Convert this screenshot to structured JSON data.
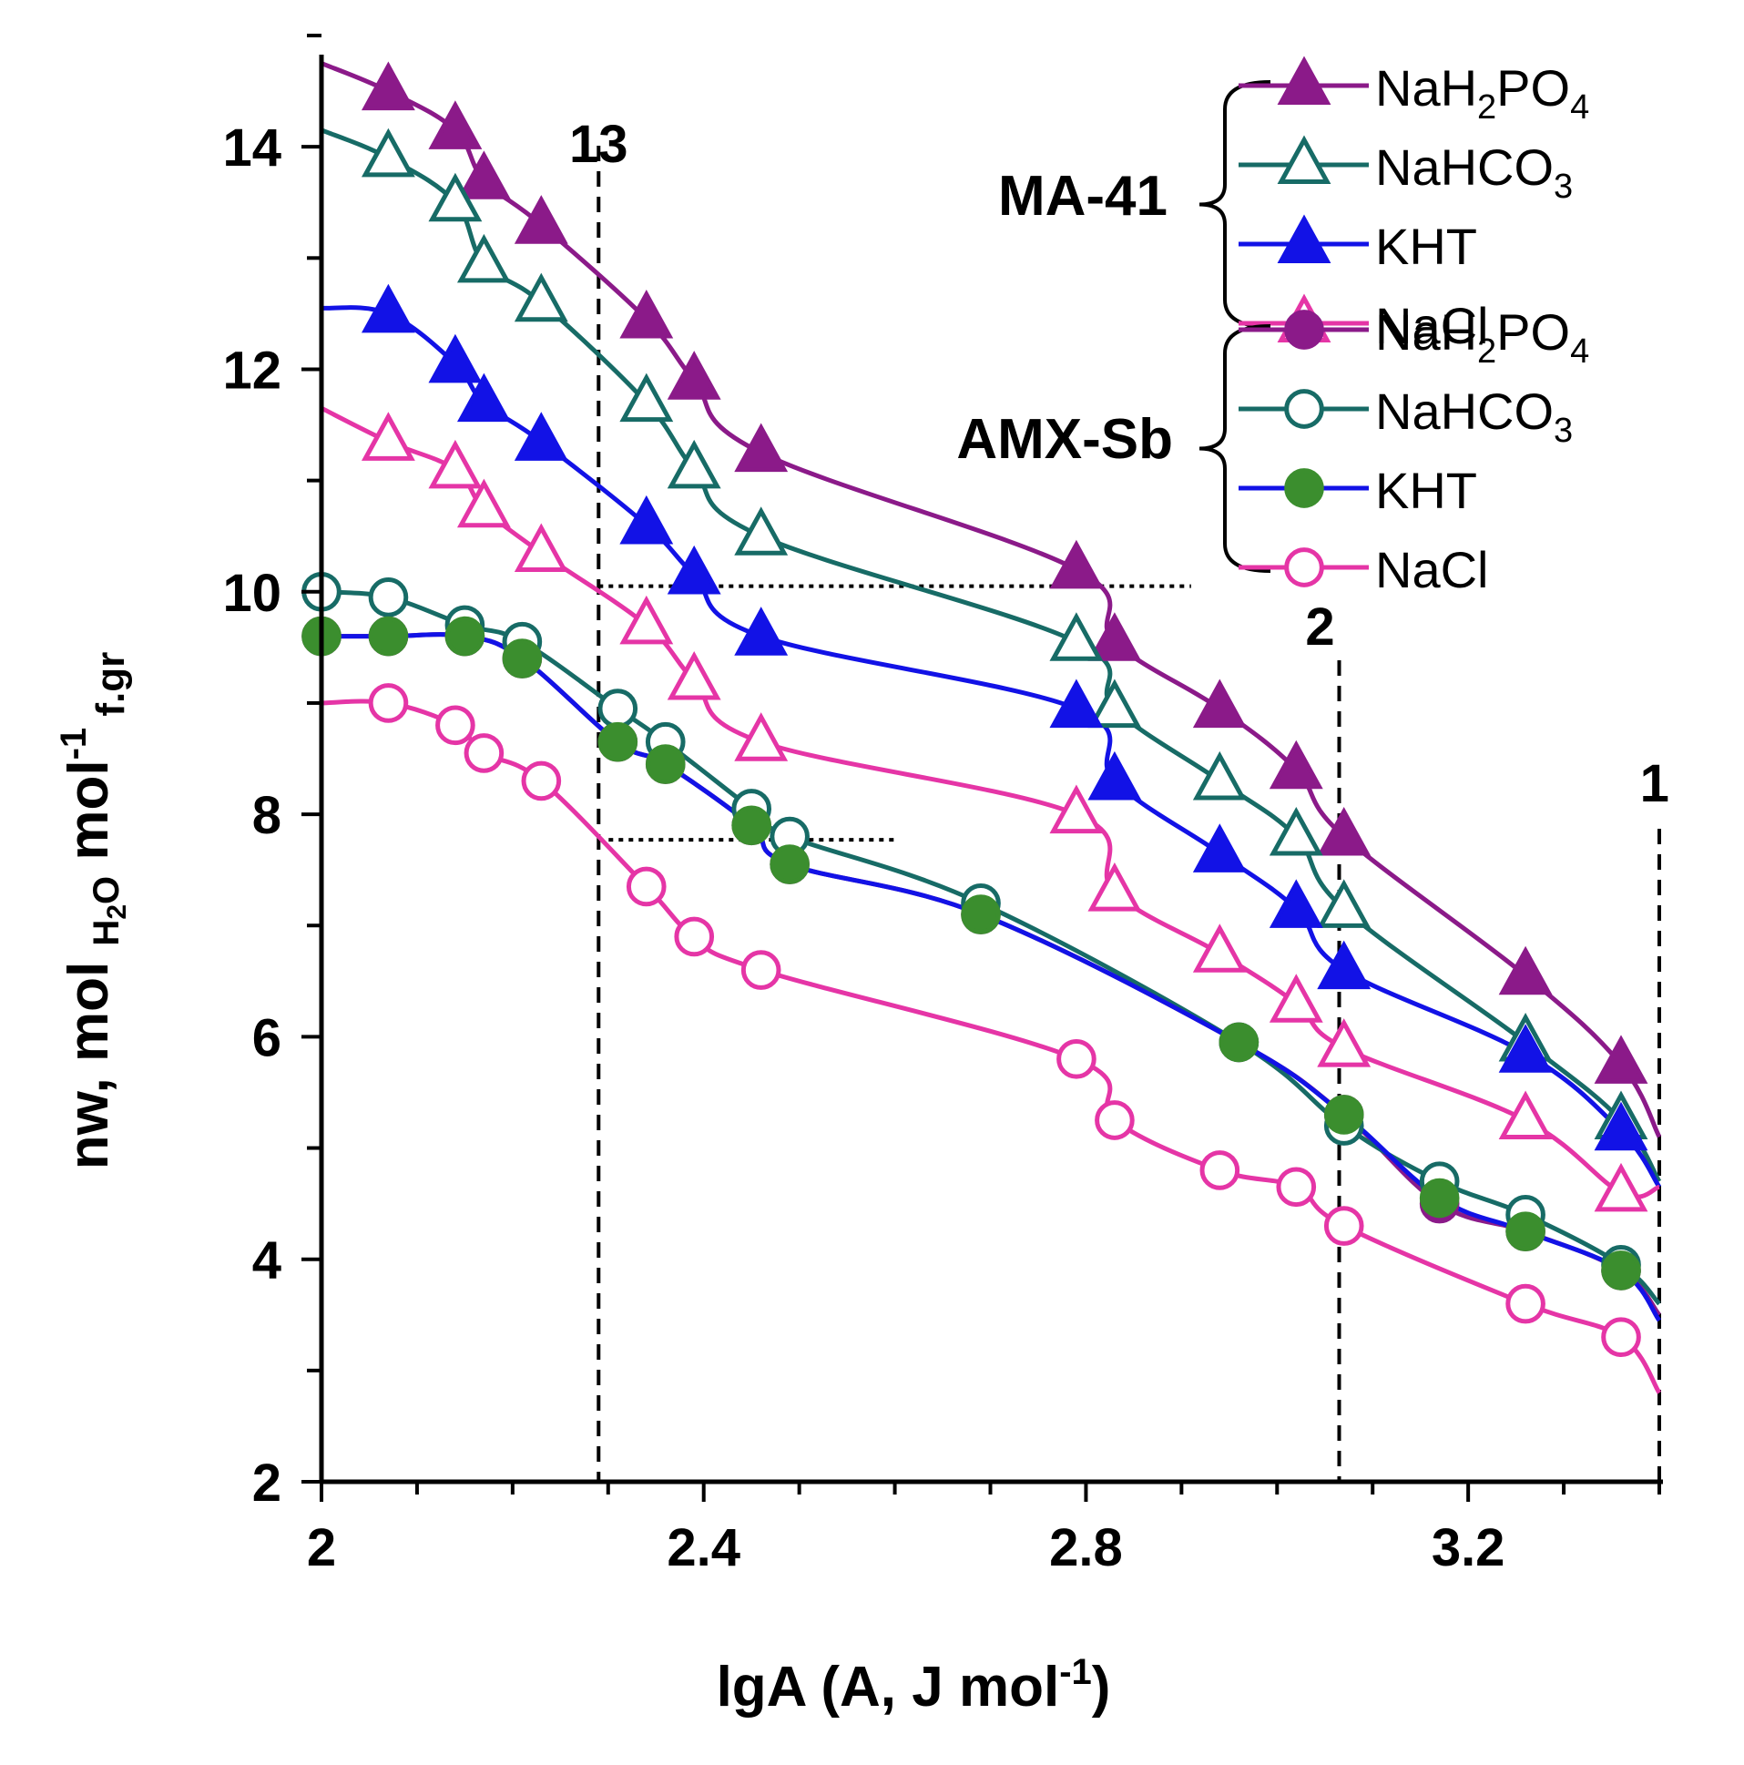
{
  "chart_data": {
    "type": "line",
    "title": "",
    "xlabel": {
      "main": "lgA (A, J mol",
      "sup": "-1",
      "close": ")"
    },
    "ylabel": {
      "p1": "nw, mol ",
      "sub1": "H",
      "sub2": "2",
      "sub3": "O",
      "p2": " mol",
      "sup": "-1",
      "sub4": " f.gr"
    },
    "xlim": [
      2.0,
      3.4
    ],
    "ylim": [
      2,
      15
    ],
    "x_ticks": [
      {
        "value": 2.0,
        "label": "2"
      },
      {
        "value": 2.4,
        "label": "2.4"
      },
      {
        "value": 2.8,
        "label": "2.8"
      },
      {
        "value": 3.2,
        "label": "3.2"
      }
    ],
    "y_ticks": [
      {
        "value": 2,
        "label": "2"
      },
      {
        "value": 4,
        "label": "4"
      },
      {
        "value": 6,
        "label": "6"
      },
      {
        "value": 8,
        "label": "8"
      },
      {
        "value": 10,
        "label": "10"
      },
      {
        "value": 12,
        "label": "12"
      },
      {
        "value": 14,
        "label": "14"
      }
    ],
    "vertical_lines": [
      {
        "x": 2.29,
        "label": "13"
      },
      {
        "x": 3.065,
        "label": "2"
      },
      {
        "x": 3.4,
        "label": "1"
      }
    ],
    "horizontal_lines": [
      {
        "y": 10.05,
        "x_from": 2.29,
        "x_to": 2.91
      },
      {
        "y": 7.77,
        "x_from": 2.29,
        "x_to": 2.6
      }
    ],
    "legend_groups": [
      {
        "label": "MA-41",
        "entries": [
          0,
          1,
          2,
          3
        ]
      },
      {
        "label": "AMX-Sb",
        "entries": [
          4,
          5,
          6,
          7
        ]
      }
    ],
    "series": [
      {
        "name": "NaH2PO4",
        "name_parts": [
          "NaH",
          "2",
          "PO",
          "4"
        ],
        "group": "MA-41",
        "color": "#8b1a89",
        "marker": "triangle",
        "fill": "#8b1a89",
        "stroke": "#8b1a89",
        "x": [
          2.07,
          2.14,
          2.17,
          2.23,
          2.34,
          2.39,
          2.46,
          2.79,
          2.83,
          2.94,
          3.02,
          3.07,
          3.26,
          3.36
        ],
        "y": [
          14.5,
          14.15,
          13.7,
          13.3,
          12.45,
          11.9,
          11.25,
          10.2,
          9.55,
          8.95,
          8.4,
          7.8,
          6.55,
          5.75
        ],
        "line_start": [
          2.0,
          14.75
        ],
        "line_end": [
          3.4,
          5.1
        ]
      },
      {
        "name": "NaHCO3",
        "name_parts": [
          "NaHCO",
          "3",
          "",
          ""
        ],
        "group": "MA-41",
        "color": "#176b66",
        "marker": "triangle",
        "fill": "#ffffff",
        "stroke": "#176b66",
        "x": [
          2.07,
          2.14,
          2.17,
          2.23,
          2.34,
          2.39,
          2.46,
          2.79,
          2.83,
          2.94,
          3.02,
          3.07,
          3.26,
          3.36
        ],
        "y": [
          13.9,
          13.5,
          12.95,
          12.6,
          11.7,
          11.1,
          10.5,
          9.55,
          8.95,
          8.3,
          7.8,
          7.15,
          5.95,
          5.25
        ],
        "line_start": [
          2.0,
          14.15
        ],
        "line_end": [
          3.4,
          4.7
        ]
      },
      {
        "name": "KHT",
        "name_parts": [
          "KHT",
          "",
          "",
          ""
        ],
        "group": "MA-41",
        "color": "#1212e6",
        "marker": "triangle",
        "fill": "#1212e6",
        "stroke": "#1212e6",
        "x": [
          2.07,
          2.14,
          2.17,
          2.23,
          2.34,
          2.39,
          2.46,
          2.79,
          2.83,
          2.94,
          3.02,
          3.07,
          3.26,
          3.36
        ],
        "y": [
          12.5,
          12.05,
          11.7,
          11.35,
          10.6,
          10.15,
          9.6,
          8.95,
          8.3,
          7.65,
          7.15,
          6.6,
          5.85,
          5.15
        ],
        "line_start": [
          2.0,
          12.55
        ],
        "line_end": [
          3.4,
          4.65
        ]
      },
      {
        "name": "NaCl",
        "name_parts": [
          "NaCl",
          "",
          "",
          ""
        ],
        "group": "MA-41",
        "color": "#e535a6",
        "marker": "triangle",
        "fill": "#ffffff",
        "stroke": "#e535a6",
        "x": [
          2.07,
          2.14,
          2.17,
          2.23,
          2.34,
          2.39,
          2.46,
          2.79,
          2.83,
          2.94,
          3.02,
          3.07,
          3.26,
          3.36
        ],
        "y": [
          11.35,
          11.1,
          10.75,
          10.35,
          9.7,
          9.2,
          8.65,
          8.0,
          7.3,
          6.75,
          6.3,
          5.9,
          5.25,
          4.6
        ],
        "line_start": [
          2.0,
          11.65
        ],
        "line_end": [
          3.4,
          4.65
        ]
      },
      {
        "name": "NaH2PO4",
        "name_parts": [
          "NaH",
          "2",
          "PO",
          "4"
        ],
        "group": "AMX-Sb",
        "color": "#8b1a89",
        "marker": "circle",
        "fill": "#8b1a89",
        "stroke": "#8b1a89",
        "x": [
          2.0,
          2.07,
          2.15,
          2.21,
          2.31,
          2.36,
          2.45,
          2.49,
          2.69,
          2.96,
          3.07,
          3.17,
          3.26,
          3.36
        ],
        "y": [
          9.6,
          9.6,
          9.6,
          9.4,
          8.65,
          8.45,
          7.9,
          7.55,
          7.1,
          5.95,
          5.3,
          4.5,
          4.25,
          3.9
        ],
        "line_start": [
          2.0,
          9.6
        ],
        "line_end": [
          3.4,
          3.5
        ]
      },
      {
        "name": "NaHCO3",
        "name_parts": [
          "NaHCO",
          "3",
          "",
          ""
        ],
        "group": "AMX-Sb",
        "color": "#176b66",
        "marker": "circle",
        "fill": "#ffffff",
        "stroke": "#176b66",
        "x": [
          2.0,
          2.07,
          2.15,
          2.21,
          2.31,
          2.36,
          2.45,
          2.49,
          2.69,
          2.96,
          3.07,
          3.17,
          3.26,
          3.36
        ],
        "y": [
          10.0,
          9.95,
          9.7,
          9.55,
          8.95,
          8.65,
          8.05,
          7.8,
          7.2,
          5.95,
          5.2,
          4.7,
          4.4,
          3.95
        ],
        "line_start": [
          2.0,
          10.0
        ],
        "line_end": [
          3.4,
          3.6
        ]
      },
      {
        "name": "KHT",
        "name_parts": [
          "KHT",
          "",
          "",
          ""
        ],
        "group": "AMX-Sb",
        "color": "#1212e6",
        "marker": "circle",
        "fill": "#3b8e2e",
        "stroke": "#3b8e2e",
        "x": [
          2.0,
          2.07,
          2.15,
          2.21,
          2.31,
          2.36,
          2.45,
          2.49,
          2.69,
          2.96,
          3.07,
          3.17,
          3.26,
          3.36
        ],
        "y": [
          9.6,
          9.6,
          9.6,
          9.4,
          8.65,
          8.45,
          7.9,
          7.55,
          7.1,
          5.95,
          5.3,
          4.55,
          4.25,
          3.9
        ],
        "line_start": [
          2.0,
          9.6
        ],
        "line_end": [
          3.4,
          3.45
        ]
      },
      {
        "name": "NaCl",
        "name_parts": [
          "NaCl",
          "",
          "",
          ""
        ],
        "group": "AMX-Sb",
        "color": "#e535a6",
        "marker": "circle",
        "fill": "#ffffff",
        "stroke": "#e535a6",
        "x": [
          2.07,
          2.14,
          2.17,
          2.23,
          2.34,
          2.39,
          2.46,
          2.79,
          2.83,
          2.94,
          3.02,
          3.07,
          3.26,
          3.36
        ],
        "y": [
          9.0,
          8.8,
          8.55,
          8.3,
          7.35,
          6.9,
          6.6,
          5.8,
          5.25,
          4.8,
          4.65,
          4.3,
          3.6,
          3.3
        ],
        "line_start": [
          2.0,
          9.0
        ],
        "line_end": [
          3.4,
          2.8
        ]
      }
    ]
  }
}
